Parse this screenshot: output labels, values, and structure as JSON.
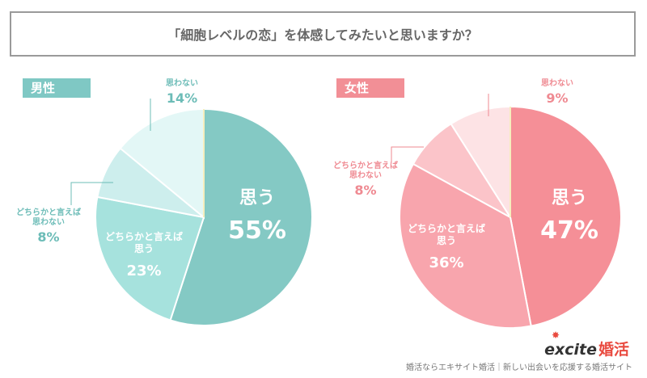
{
  "title": "「細胞レベルの恋」を体感してみたいと思いますか？",
  "chart_data": [
    {
      "type": "pie",
      "group_label": "男性",
      "slices": [
        {
          "label": "思う",
          "value": 55,
          "color": "#84c9c4"
        },
        {
          "label": "どちらかと言えば思う",
          "value": 23,
          "color": "#a6e2dd"
        },
        {
          "label": "どちらかと言えば思わない",
          "value": 8,
          "color": "#cdeeed"
        },
        {
          "label": "思わない",
          "value": 14,
          "color": "#e3f7f6"
        }
      ],
      "display": [
        {
          "name": "思う",
          "pct": "55%"
        },
        {
          "name": "どちらかと言えば\n思う",
          "pct": "23%"
        },
        {
          "name": "どちらかと言えば\n思わない",
          "pct": "8%"
        },
        {
          "name": "思わない",
          "pct": "14%"
        }
      ]
    },
    {
      "type": "pie",
      "group_label": "女性",
      "slices": [
        {
          "label": "思う",
          "value": 47,
          "color": "#f58f97"
        },
        {
          "label": "どちらかと言えば思う",
          "value": 36,
          "color": "#f8a5ad"
        },
        {
          "label": "どちらかと言えば思わない",
          "value": 8,
          "color": "#fbc4c9"
        },
        {
          "label": "思わない",
          "value": 9,
          "color": "#fde3e5"
        }
      ],
      "display": [
        {
          "name": "思う",
          "pct": "47%"
        },
        {
          "name": "どちらかと言えば\n思う",
          "pct": "36%"
        },
        {
          "name": "どちらかと言えば\n思わない",
          "pct": "8%"
        },
        {
          "name": "思わない",
          "pct": "9%"
        }
      ]
    }
  ],
  "brand": {
    "logo_text": "excite",
    "logo_kanji": "婚活"
  },
  "footer": "婚活ならエキサイト婚活｜新しい出会いを応援する婚活サイト"
}
